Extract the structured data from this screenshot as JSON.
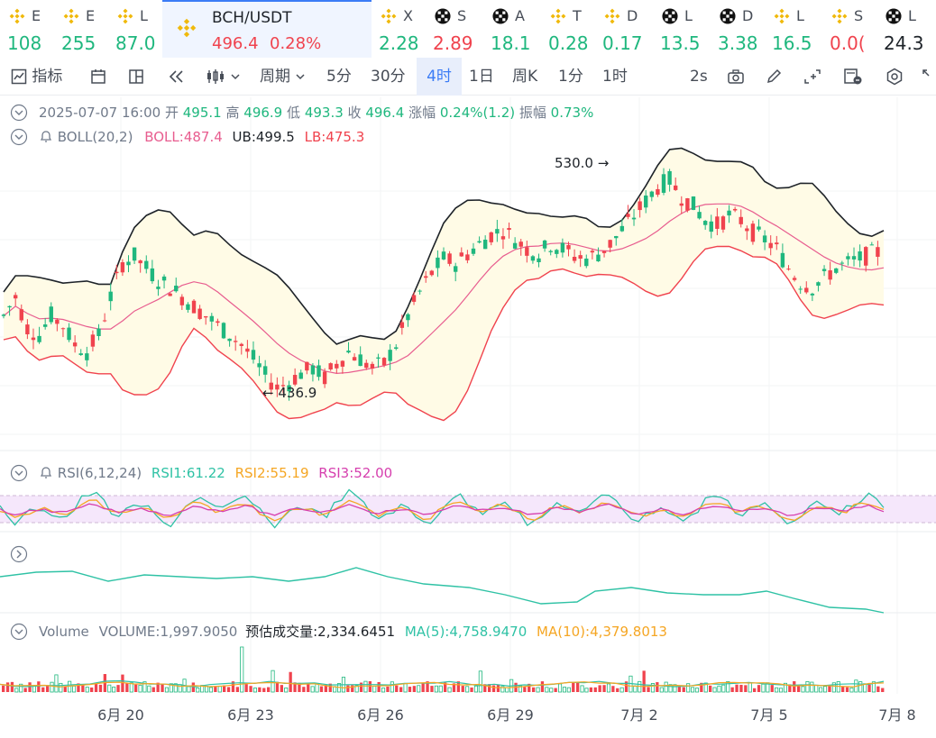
{
  "ticker": [
    {
      "name": "E",
      "value": "108",
      "dir": "up",
      "icon": "binance-icon"
    },
    {
      "name": "E",
      "value": "255",
      "dir": "up",
      "icon": "binance-icon"
    },
    {
      "name": "L",
      "value": "87.0",
      "dir": "up",
      "icon": "binance-icon"
    },
    {
      "name": "BCH/USDT",
      "value": "496.4",
      "change": "0.28%",
      "dir": "down",
      "icon": "binance-icon",
      "active": true
    },
    {
      "name": "X",
      "value": "2.28",
      "dir": "up",
      "icon": "binance-icon"
    },
    {
      "name": "S",
      "value": "2.89",
      "dir": "down",
      "icon": "okx-icon"
    },
    {
      "name": "A",
      "value": "18.1",
      "dir": "up",
      "icon": "okx-icon"
    },
    {
      "name": "T",
      "value": "0.28",
      "dir": "up",
      "icon": "binance-icon"
    },
    {
      "name": "D",
      "value": "0.17",
      "dir": "up",
      "icon": "binance-icon"
    },
    {
      "name": "L",
      "value": "13.5",
      "dir": "up",
      "icon": "okx-icon"
    },
    {
      "name": "D",
      "value": "3.38",
      "dir": "up",
      "icon": "okx-icon"
    },
    {
      "name": "L",
      "value": "16.5",
      "dir": "up",
      "icon": "binance-icon"
    },
    {
      "name": "S",
      "value": "0.0(",
      "dir": "down",
      "icon": "binance-icon"
    },
    {
      "name": "L",
      "value": "24.3",
      "dir": "neutral",
      "icon": "okx-icon"
    }
  ],
  "toolbar": {
    "indicators": "指标",
    "period": "周期",
    "intervals": [
      "5分",
      "30分",
      "4时",
      "1日",
      "周K",
      "1分",
      "1时"
    ],
    "selected_interval": "4时",
    "refresh": "2s"
  },
  "ohlc": {
    "datetime": "2025-07-07 16:00",
    "open_label": "开",
    "open": "495.1",
    "high_label": "高",
    "high": "496.9",
    "low_label": "低",
    "low": "493.3",
    "close_label": "收",
    "close": "496.4",
    "change_label": "涨幅",
    "change": "0.24%(1.2)",
    "amplitude_label": "振幅",
    "amplitude": "0.73%"
  },
  "boll": {
    "label": "BOLL(20,2)",
    "mid": "BOLL:487.4",
    "ub": "UB:499.5",
    "lb": "LB:475.3"
  },
  "rsi": {
    "label": "RSI(6,12,24)",
    "rsi1": "RSI1:61.22",
    "rsi2": "RSI2:55.19",
    "rsi3": "RSI3:52.00"
  },
  "volume": {
    "label": "Volume",
    "value": "VOLUME:1,997.9050",
    "estimated": "预估成交量:2,334.6451",
    "ma5": "MA(5):4,758.9470",
    "ma10": "MA(10):4,379.8013"
  },
  "annotations": {
    "high": "530.0",
    "low": "436.9"
  },
  "x_axis": [
    "6月 20",
    "6月 23",
    "6月 26",
    "6月 29",
    "7月 2",
    "7月 5",
    "7月 8"
  ],
  "colors": {
    "up": "#1fb77e",
    "down": "#f0434e",
    "boll_mid": "#e85d8f",
    "ub": "#1e2329",
    "lb": "#f0434e",
    "rsi1": "#2fc2a5",
    "rsi2": "#f5a623",
    "rsi3": "#d63fae",
    "accent": "#3b7cf6"
  },
  "chart_data": {
    "type": "candlestick",
    "price_series": [
      470,
      478,
      465,
      462,
      470,
      466,
      458,
      455,
      462,
      478,
      492,
      495,
      490,
      485,
      482,
      478,
      474,
      470,
      466,
      462,
      458,
      452,
      445,
      440,
      442,
      446,
      448,
      444,
      450,
      455,
      452,
      448,
      450,
      458,
      470,
      480,
      488,
      494,
      492,
      496,
      500,
      504,
      506,
      502,
      498,
      496,
      500,
      498,
      495,
      494,
      496,
      500,
      506,
      512,
      518,
      524,
      527,
      520,
      516,
      510,
      508,
      512,
      510,
      505,
      502,
      498,
      490,
      484,
      482,
      486,
      490,
      492,
      494,
      496,
      497
    ],
    "boll_ub": "499.5",
    "boll_mid": "487.4",
    "boll_lb": "475.3",
    "high_marker": 530.0,
    "low_marker": 436.9
  }
}
